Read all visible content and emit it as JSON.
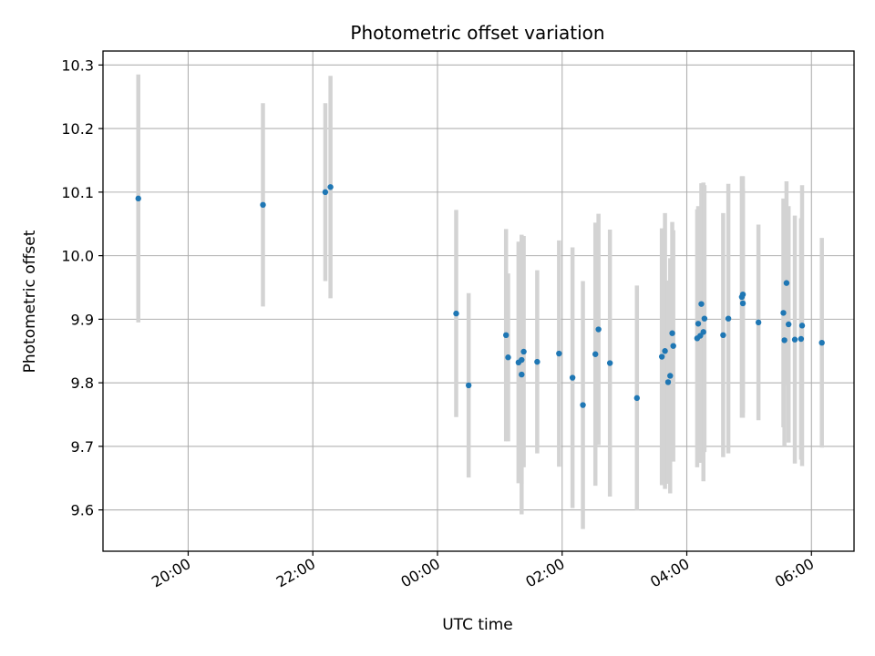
{
  "chart_data": {
    "type": "scatter",
    "title": "Photometric offset variation",
    "xlabel": "UTC time",
    "ylabel": "Photometric offset",
    "x_axis": "time",
    "ylim": [
      9.535,
      10.322
    ],
    "xlim": [
      "18:38",
      "06:41"
    ],
    "grid": true,
    "legend": "none",
    "yticks": [
      "9.6",
      "9.7",
      "9.8",
      "9.9",
      "10.0",
      "10.1",
      "10.2",
      "10.3"
    ],
    "xticks": [
      "20:00",
      "22:00",
      "00:00",
      "02:00",
      "04:00",
      "06:00"
    ],
    "colors": {
      "point": "#1f77b4",
      "errorbar": "#d3d3d3",
      "grid": "#b0b0b0"
    },
    "series": [
      {
        "x": [
          "19:12",
          "21:12",
          "22:12",
          "22:17",
          "00:18",
          "00:30",
          "01:06",
          "01:08",
          "01:18",
          "01:21",
          "01:21",
          "01:23",
          "01:36",
          "01:57",
          "02:10",
          "02:20",
          "02:32",
          "02:35",
          "02:46",
          "03:12",
          "03:36",
          "03:39",
          "03:42",
          "03:44",
          "03:46",
          "03:47",
          "04:10",
          "04:11",
          "04:13",
          "04:14",
          "04:16",
          "04:17",
          "04:35",
          "04:40",
          "04:53",
          "04:54",
          "04:54",
          "05:09",
          "05:33",
          "05:34",
          "05:36",
          "05:38",
          "05:44",
          "05:50",
          "05:51",
          "06:10"
        ],
        "y": [
          10.09,
          10.08,
          10.1,
          10.108,
          9.909,
          9.796,
          9.875,
          9.84,
          9.832,
          9.836,
          9.813,
          9.849,
          9.833,
          9.846,
          9.808,
          9.765,
          9.845,
          9.884,
          9.831,
          9.776,
          9.841,
          9.85,
          9.801,
          9.811,
          9.878,
          9.858,
          9.87,
          9.893,
          9.874,
          9.924,
          9.88,
          9.901,
          9.875,
          9.901,
          9.935,
          9.939,
          9.925,
          9.895,
          9.91,
          9.867,
          9.957,
          9.892,
          9.868,
          9.869,
          9.89,
          9.863
        ],
        "yerr": [
          0.195,
          0.16,
          0.14,
          0.175,
          0.163,
          0.145,
          0.167,
          0.132,
          0.19,
          0.195,
          0.22,
          0.182,
          0.144,
          0.178,
          0.205,
          0.195,
          0.207,
          0.182,
          0.21,
          0.177,
          0.202,
          0.217,
          0.16,
          0.185,
          0.175,
          0.182,
          0.203,
          0.185,
          0.2,
          0.19,
          0.235,
          0.21,
          0.192,
          0.212,
          0.19,
          0.186,
          0.18,
          0.154,
          0.18,
          0.167,
          0.16,
          0.186,
          0.195,
          0.19,
          0.221,
          0.165
        ]
      }
    ]
  }
}
